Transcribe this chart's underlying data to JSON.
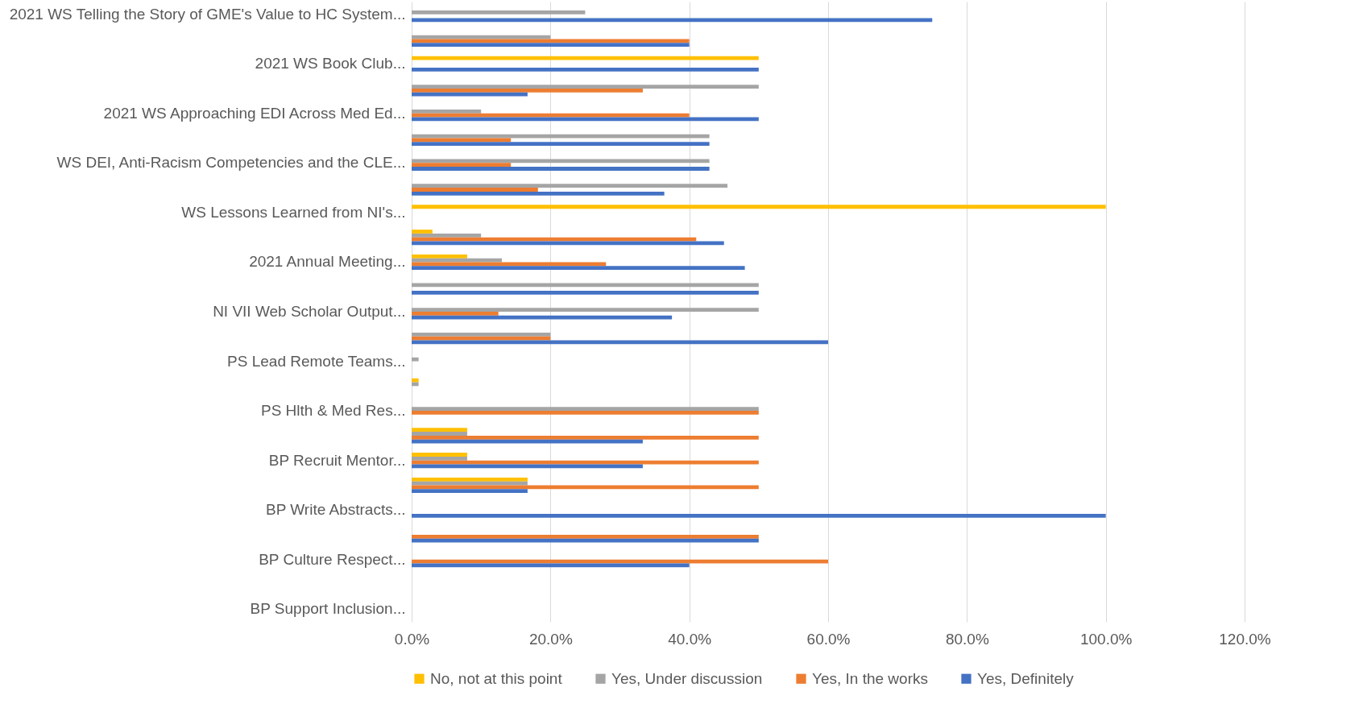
{
  "chart_data": {
    "type": "bar",
    "orientation": "horizontal",
    "categories": [
      "2021 WS Telling the Story of GME's Value to HC System...",
      null,
      "2021 WS Book Club...",
      null,
      "2021 WS Approaching EDI Across Med Ed...",
      null,
      "WS DEI, Anti-Racism Competencies and the CLE...",
      null,
      "WS Lessons Learned from NI's...",
      null,
      "2021 Annual Meeting...",
      null,
      "NI VII Web Scholar Output...",
      null,
      "PS Lead Remote Teams...",
      null,
      "PS Hlth & Med Res...",
      null,
      "BP Recruit Mentor...",
      null,
      "BP Write Abstracts...",
      null,
      "BP Culture Respect...",
      null,
      "BP Support Inclusion..."
    ],
    "series": [
      {
        "name": "No, not at this point",
        "color": "#ffc000",
        "values": [
          null,
          null,
          50,
          null,
          null,
          null,
          null,
          null,
          100,
          3,
          8,
          null,
          null,
          null,
          null,
          1,
          null,
          8,
          8,
          16.7,
          null,
          null,
          null,
          null,
          null
        ]
      },
      {
        "name": "Yes, Under discussion",
        "color": "#a5a5a5",
        "values": [
          25,
          20,
          null,
          50,
          10,
          42.9,
          42.9,
          45.5,
          null,
          10,
          13,
          50,
          50,
          20,
          1,
          1,
          50,
          8,
          8,
          16.7,
          null,
          null,
          null,
          null,
          null
        ]
      },
      {
        "name": "Yes, In the works",
        "color": "#ed7d31",
        "values": [
          null,
          40,
          null,
          33.3,
          40,
          14.3,
          14.3,
          18.2,
          null,
          41,
          28,
          null,
          12.5,
          20,
          null,
          null,
          50,
          50,
          50,
          50,
          null,
          50,
          60,
          null,
          null
        ]
      },
      {
        "name": "Yes, Definitely",
        "color": "#4472c4",
        "values": [
          75,
          40,
          50,
          16.7,
          50,
          42.9,
          42.9,
          36.4,
          null,
          45,
          48,
          50,
          37.5,
          60,
          null,
          null,
          null,
          33.3,
          33.3,
          16.7,
          100,
          50,
          40,
          null,
          null
        ]
      }
    ],
    "xlim": [
      0,
      120
    ],
    "xticks": [
      {
        "value": 0,
        "label": "0.0%"
      },
      {
        "value": 20,
        "label": "20.0%"
      },
      {
        "value": 40,
        "label": "40.0%"
      },
      {
        "value": 60,
        "label": "60.0%"
      },
      {
        "value": 80,
        "label": "80.0%"
      },
      {
        "value": 100,
        "label": "100.0%"
      },
      {
        "value": 120,
        "label": "120.0%"
      }
    ],
    "grid": "x",
    "legend": "bottom"
  }
}
